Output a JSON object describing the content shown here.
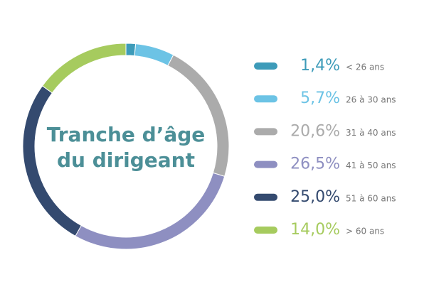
{
  "chart_data": {
    "type": "donut",
    "title": "Tranche d’âge du dirigeant",
    "categories": [
      "< 26 ans",
      "26 à 30 ans",
      "31 à 40 ans",
      "41 à 50 ans",
      "51 à 60 ans",
      "> 60 ans"
    ],
    "values": [
      1.4,
      5.7,
      20.6,
      26.5,
      25.0,
      14.0
    ],
    "value_labels": [
      "1,4%",
      "5,7%",
      "20,6%",
      "26,5%",
      "25,0%",
      "14,0%"
    ],
    "colors": [
      "#3d9bb9",
      "#6cc3e5",
      "#ababab",
      "#8e8fc1",
      "#344a6f",
      "#a6cb5e"
    ]
  }
}
